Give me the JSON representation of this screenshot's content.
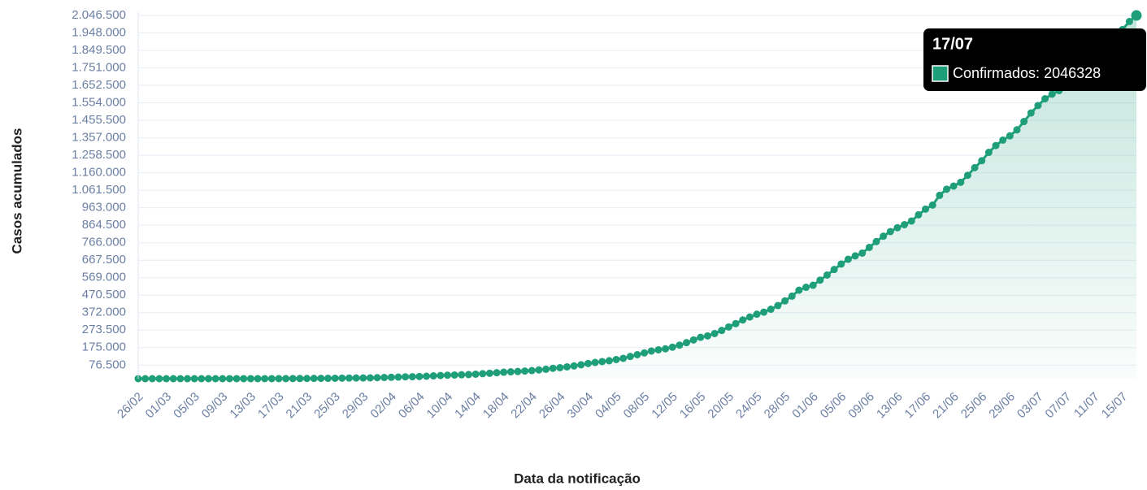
{
  "chart_data": {
    "type": "line",
    "x_label": "Data da notificação",
    "y_label": "Casos acumulados",
    "categories": [
      "26/02",
      null,
      null,
      null,
      "01/03",
      null,
      null,
      null,
      "05/03",
      null,
      null,
      null,
      "09/03",
      null,
      null,
      null,
      "13/03",
      null,
      null,
      null,
      "17/03",
      null,
      null,
      null,
      "21/03",
      null,
      null,
      null,
      "25/03",
      null,
      null,
      null,
      "29/03",
      null,
      null,
      null,
      "02/04",
      null,
      null,
      null,
      "06/04",
      null,
      null,
      null,
      "10/04",
      null,
      null,
      null,
      "14/04",
      null,
      null,
      null,
      "18/04",
      null,
      null,
      null,
      "22/04",
      null,
      null,
      null,
      "26/04",
      null,
      null,
      null,
      "30/04",
      null,
      null,
      null,
      "04/05",
      null,
      null,
      null,
      "08/05",
      null,
      null,
      null,
      "12/05",
      null,
      null,
      null,
      "16/05",
      null,
      null,
      null,
      "20/05",
      null,
      null,
      null,
      "24/05",
      null,
      null,
      null,
      "28/05",
      null,
      null,
      null,
      "01/06",
      null,
      null,
      null,
      "05/06",
      null,
      null,
      null,
      "09/06",
      null,
      null,
      null,
      "13/06",
      null,
      null,
      null,
      "17/06",
      null,
      null,
      null,
      "21/06",
      null,
      null,
      null,
      "25/06",
      null,
      null,
      null,
      "29/06",
      null,
      null,
      null,
      "03/07",
      null,
      null,
      null,
      "07/07",
      null,
      null,
      null,
      "11/07",
      null,
      null,
      null,
      "15/07",
      null,
      "17/07"
    ],
    "series": [
      {
        "name": "Confirmados",
        "color": "#1f9e7a",
        "values": [
          1,
          1,
          1,
          1,
          2,
          2,
          3,
          4,
          8,
          13,
          19,
          20,
          25,
          34,
          52,
          77,
          98,
          121,
          200,
          234,
          291,
          428,
          621,
          904,
          1128,
          1546,
          1891,
          2201,
          2433,
          2915,
          3417,
          3904,
          4256,
          4579,
          5717,
          6836,
          7910,
          9056,
          10278,
          11130,
          12056,
          13717,
          15927,
          17857,
          19638,
          20727,
          22169,
          23430,
          25262,
          28320,
          30425,
          33682,
          36599,
          38654,
          40581,
          43079,
          45757,
          49492,
          52995,
          58509,
          61888,
          66501,
          71886,
          78162,
          85380,
          91299,
          96396,
          101147,
          107780,
          114715,
          125218,
          135106,
          145328,
          155939,
          162699,
          168331,
          177589,
          188974,
          202918,
          218223,
          233142,
          241080,
          254220,
          271628,
          291579,
          310087,
          330890,
          347398,
          363211,
          374898,
          391222,
          411821,
          438238,
          465166,
          498440,
          514849,
          526447,
          555383,
          584016,
          614941,
          645771,
          672846,
          691758,
          707412,
          739503,
          772416,
          802828,
          828810,
          850514,
          867624,
          888271,
          923189,
          955377,
          978142,
          1032913,
          1067579,
          1085038,
          1106470,
          1145906,
          1188631,
          1228114,
          1274974,
          1313667,
          1344143,
          1368195,
          1402041,
          1448753,
          1496858,
          1539081,
          1577004,
          1603055,
          1623284,
          1668589,
          1713160,
          1755779,
          1800827,
          1839850,
          1864681,
          1884967,
          1926824,
          1966748,
          2012151,
          2046328
        ]
      }
    ],
    "ylim": [
      0,
      2046500
    ],
    "yticks": [
      {
        "value": 76500,
        "label": "76.500"
      },
      {
        "value": 175000,
        "label": "175.000"
      },
      {
        "value": 273500,
        "label": "273.500"
      },
      {
        "value": 372000,
        "label": "372.000"
      },
      {
        "value": 470500,
        "label": "470.500"
      },
      {
        "value": 569000,
        "label": "569.000"
      },
      {
        "value": 667500,
        "label": "667.500"
      },
      {
        "value": 766000,
        "label": "766.000"
      },
      {
        "value": 864500,
        "label": "864.500"
      },
      {
        "value": 963000,
        "label": "963.000"
      },
      {
        "value": 1061500,
        "label": "1.061.500"
      },
      {
        "value": 1160000,
        "label": "1.160.000"
      },
      {
        "value": 1258500,
        "label": "1.258.500"
      },
      {
        "value": 1357000,
        "label": "1.357.000"
      },
      {
        "value": 1455500,
        "label": "1.455.500"
      },
      {
        "value": 1554000,
        "label": "1.554.000"
      },
      {
        "value": 1652500,
        "label": "1.652.500"
      },
      {
        "value": 1751000,
        "label": "1.751.000"
      },
      {
        "value": 1849500,
        "label": "1.849.500"
      },
      {
        "value": 1948000,
        "label": "1.948.000"
      },
      {
        "value": 2046500,
        "label": "2.046.500"
      }
    ],
    "grid": true
  }
}
